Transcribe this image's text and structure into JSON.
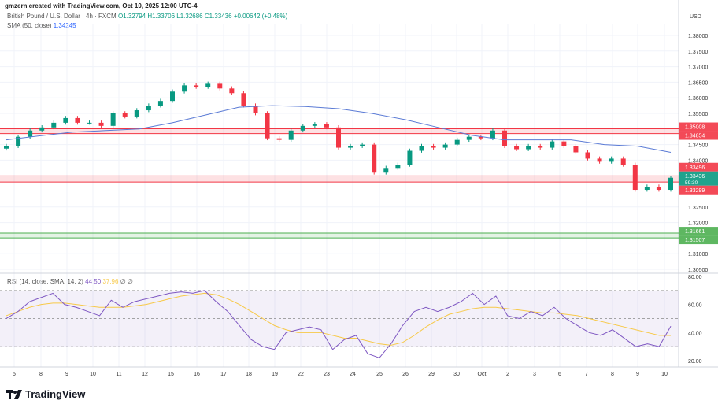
{
  "credit": "gmzern created with TradingView.com, Oct 10, 2025 12:00 UTC-4",
  "legend": {
    "symbol": "British Pound / U.S. Dollar · 4h · FXCM",
    "open": "O1.32794",
    "high": "H1.33706",
    "low": "L1.32686",
    "close": "C1.33436",
    "change": "+0.00642 (+0.48%)",
    "sma_label": "SMA (50, close)",
    "sma_value": "1.34245"
  },
  "rsi_legend": {
    "label": "RSI (14, close, SMA, 14, 2)",
    "rsi": "44.50",
    "ma": "37.96",
    "extra1": "∅",
    "extra2": "∅"
  },
  "currency": "USD",
  "logo": "TradingView",
  "colors": {
    "up": "#089981",
    "down": "#f23645",
    "sma": "#5b7bd5",
    "rsi": "#7e57c2",
    "rsi_ma": "#f7c948",
    "resistance": "#f23645",
    "support": "#4caf50"
  },
  "chart_data": {
    "type": "candlestick",
    "price_ticks": [
      "1.38000",
      "1.37500",
      "1.37000",
      "1.36500",
      "1.36000",
      "1.35500",
      "1.34500",
      "1.34000",
      "1.32500",
      "1.32000",
      "1.31000",
      "1.30500"
    ],
    "price_range": [
      1.3035,
      1.382
    ],
    "x_ticks": [
      "5",
      "8",
      "9",
      "10",
      "11",
      "12",
      "15",
      "16",
      "17",
      "18",
      "19",
      "22",
      "23",
      "24",
      "25",
      "26",
      "29",
      "30",
      "Oct",
      "2",
      "3",
      "6",
      "7",
      "8",
      "9",
      "10"
    ],
    "closes": [
      1.3445,
      1.3475,
      1.3495,
      1.3505,
      1.352,
      1.3535,
      1.352,
      1.352,
      1.351,
      1.355,
      1.354,
      1.356,
      1.3575,
      1.359,
      1.362,
      1.364,
      1.3635,
      1.3645,
      1.363,
      1.3615,
      1.3575,
      1.355,
      1.347,
      1.3465,
      1.3495,
      1.351,
      1.3515,
      1.3505,
      1.344,
      1.3445,
      1.345,
      1.336,
      1.3375,
      1.3385,
      1.343,
      1.3445,
      1.344,
      1.345,
      1.3465,
      1.3475,
      1.347,
      1.3495,
      1.3445,
      1.3435,
      1.3445,
      1.344,
      1.346,
      1.3445,
      1.3425,
      1.3405,
      1.3395,
      1.3405,
      1.3385,
      1.3305,
      1.3315,
      1.3305,
      1.33436
    ],
    "sma": [
      1.3465,
      1.3478,
      1.349,
      1.3495,
      1.35,
      1.352,
      1.3545,
      1.357,
      1.3575,
      1.3572,
      1.3565,
      1.355,
      1.353,
      1.3505,
      1.348,
      1.3465,
      1.3465,
      1.3465,
      1.345,
      1.3445,
      1.3425
    ],
    "levels": [
      {
        "kind": "resistance",
        "top": 1.35008,
        "bottom": 1.34854,
        "top_label": "1.35008",
        "bottom_label": "1.34854"
      },
      {
        "kind": "resistance",
        "top": 1.33496,
        "bottom": 1.33299,
        "top_label": "1.33496",
        "bottom_label": "1.33299"
      },
      {
        "kind": "support",
        "top": 1.31661,
        "bottom": 1.31507,
        "top_label": "1.31661",
        "bottom_label": "1.31507"
      }
    ],
    "last_price": "1.33436",
    "countdown": "59:30",
    "rsi_ticks": [
      "80.00",
      "60.00",
      "40.00",
      "20.00"
    ],
    "rsi_bands": [
      70,
      50,
      30
    ],
    "rsi": [
      50,
      55,
      62,
      65,
      68,
      60,
      58,
      55,
      52,
      63,
      58,
      62,
      64,
      66,
      68,
      69,
      68,
      70,
      62,
      55,
      45,
      35,
      30,
      28,
      40,
      42,
      44,
      42,
      28,
      35,
      38,
      25,
      22,
      32,
      45,
      55,
      58,
      55,
      58,
      62,
      68,
      60,
      66,
      52,
      50,
      55,
      52,
      58,
      50,
      45,
      40,
      38,
      42,
      36,
      30,
      32,
      30,
      44.5
    ],
    "rsi_ma": [
      52,
      55,
      58,
      60,
      61,
      61,
      60,
      59,
      58,
      58,
      58,
      59,
      60,
      62,
      64,
      66,
      67,
      68,
      67,
      64,
      60,
      55,
      50,
      45,
      42,
      40,
      40,
      40,
      38,
      36,
      36,
      34,
      32,
      31,
      33,
      38,
      44,
      49,
      53,
      55,
      57,
      58,
      58,
      57,
      56,
      55,
      54,
      54,
      53,
      52,
      50,
      48,
      46,
      44,
      42,
      40,
      38,
      37.96
    ]
  }
}
